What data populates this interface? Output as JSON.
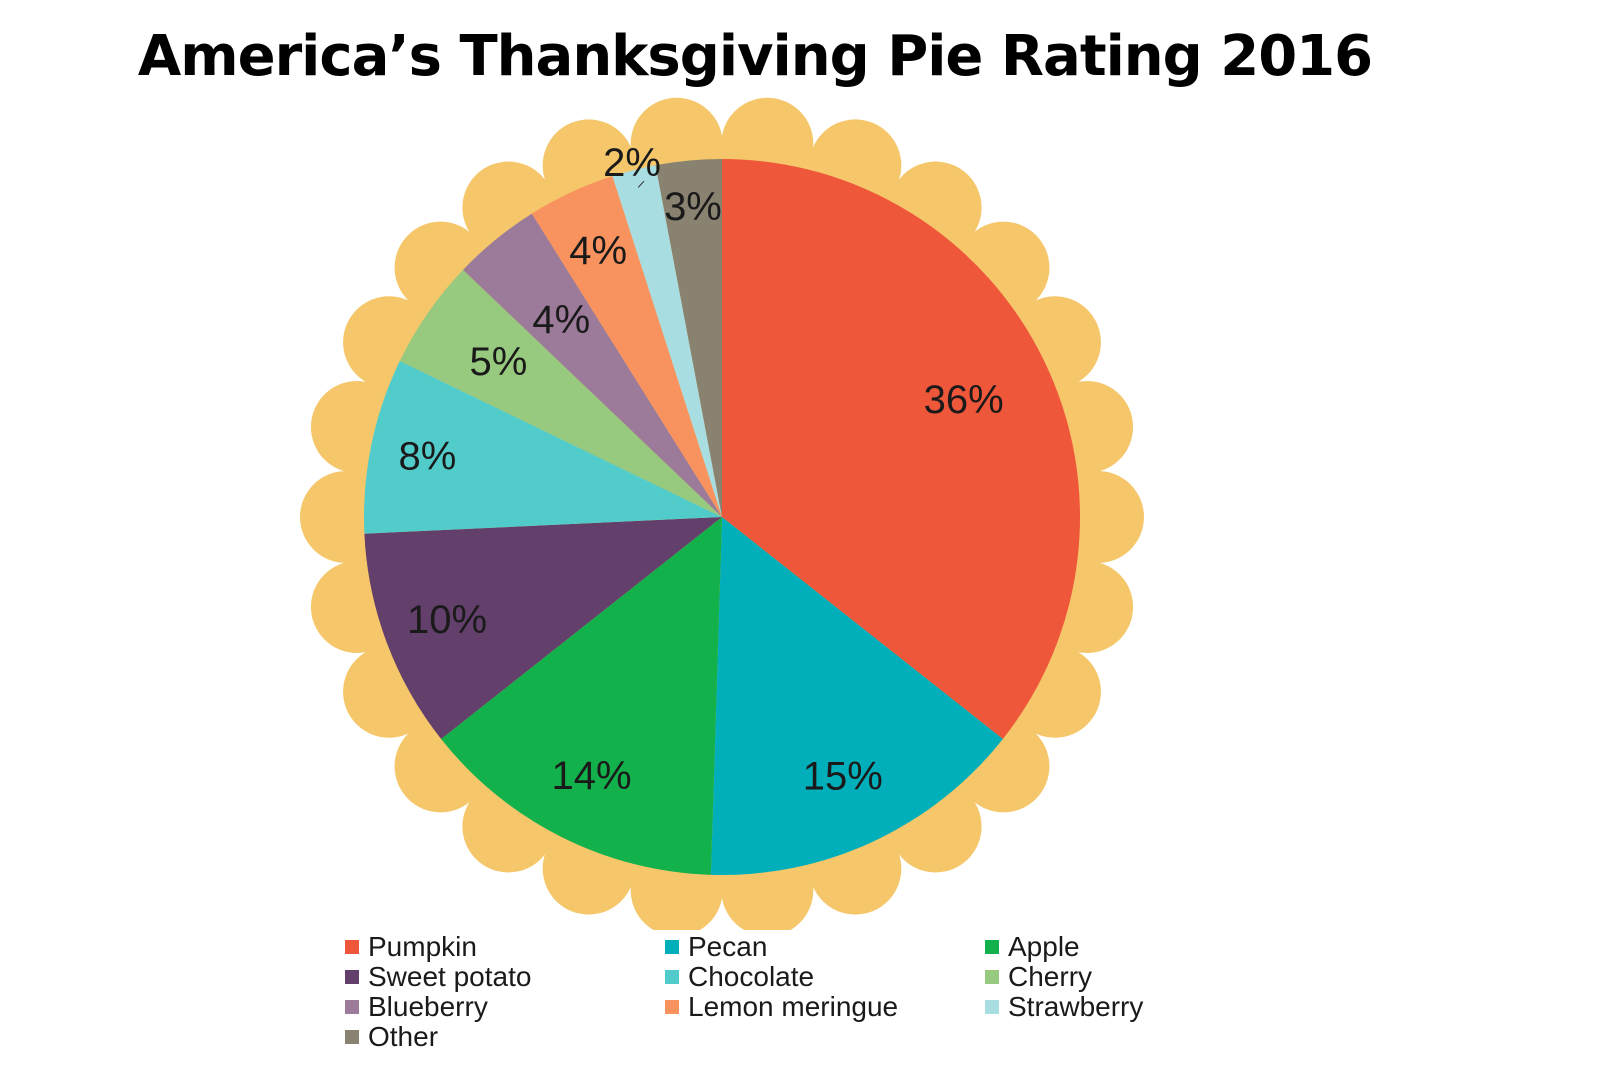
{
  "chart_data": {
    "type": "pie",
    "title": "America’s Thanksgiving Pie Rating 2016",
    "start_angle_deg": 0,
    "direction": "clockwise",
    "legend_position": "bottom",
    "crust_color": "#F5C76A",
    "slices": [
      {
        "name": "Pumpkin",
        "value": 36,
        "label": "36%",
        "color": "#EF573A"
      },
      {
        "name": "Pecan",
        "value": 15,
        "label": "15%",
        "color": "#00AFB9"
      },
      {
        "name": "Apple",
        "value": 14,
        "label": "14%",
        "color": "#12B14C"
      },
      {
        "name": "Sweet potato",
        "value": 10,
        "label": "10%",
        "color": "#633F6B"
      },
      {
        "name": "Chocolate",
        "value": 8,
        "label": "8%",
        "color": "#52CCCB"
      },
      {
        "name": "Cherry",
        "value": 5,
        "label": "5%",
        "color": "#97CA7E"
      },
      {
        "name": "Blueberry",
        "value": 4,
        "label": "4%",
        "color": "#9C7B9A"
      },
      {
        "name": "Lemon meringue",
        "value": 4,
        "label": "4%",
        "color": "#F8925E"
      },
      {
        "name": "Strawberry",
        "value": 2,
        "label": "2%",
        "color": "#A8DDE1"
      },
      {
        "name": "Other",
        "value": 3,
        "label": "3%",
        "color": "#8A8270"
      }
    ]
  }
}
